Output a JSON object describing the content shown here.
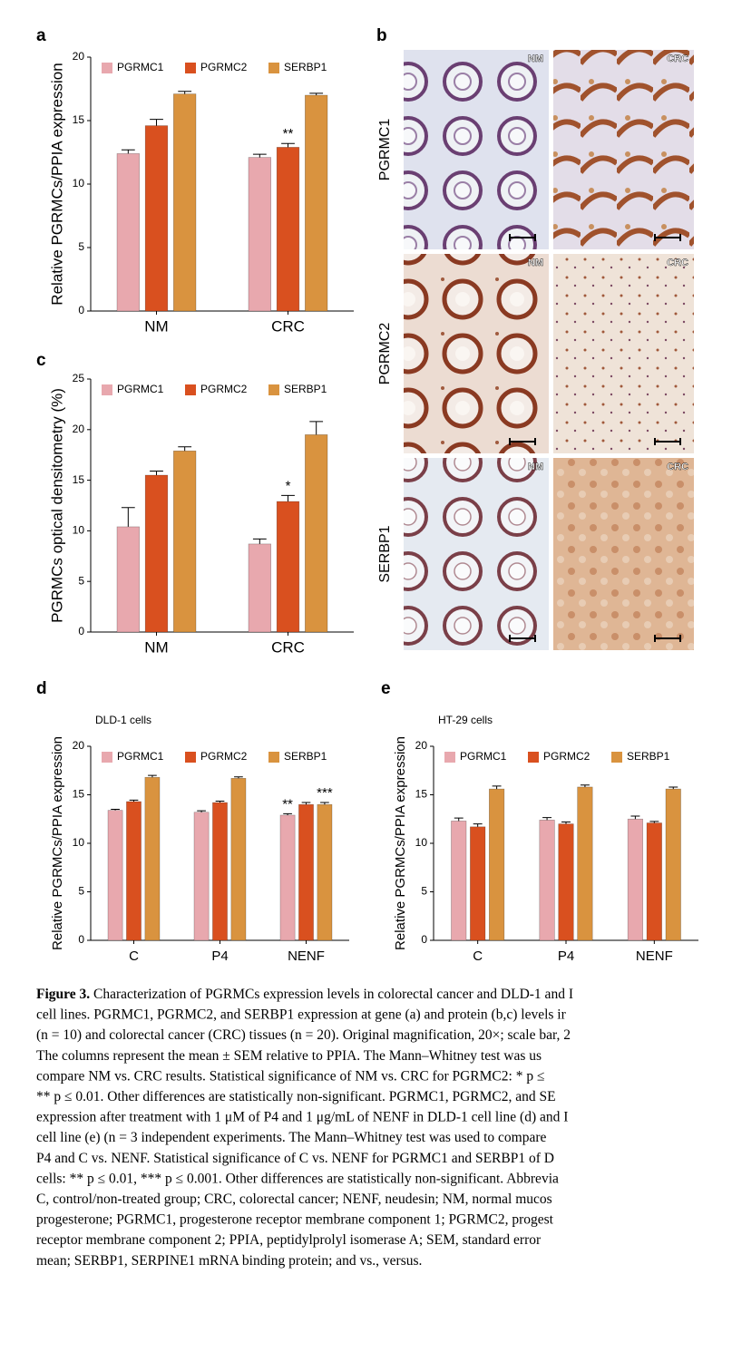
{
  "chart_data": [
    {
      "type": "bar",
      "panel": "a",
      "ylabel": "Relative PGRMCs/PPIA expression",
      "categories": [
        "NM",
        "CRC"
      ],
      "ylim": [
        0,
        20
      ],
      "yticks": [
        0,
        5,
        10,
        15,
        20
      ],
      "series": [
        {
          "name": "PGRMC1",
          "color": "#e8a8ae",
          "values": [
            12.4,
            12.1
          ],
          "errors": [
            0.3,
            0.25
          ],
          "annotations": [
            null,
            null
          ]
        },
        {
          "name": "PGRMC2",
          "color": "#d9501f",
          "values": [
            14.6,
            12.9
          ],
          "errors": [
            0.5,
            0.3
          ],
          "annotations": [
            null,
            "**"
          ]
        },
        {
          "name": "SERBP1",
          "color": "#d9933f",
          "values": [
            17.1,
            17.0
          ],
          "errors": [
            0.2,
            0.15
          ],
          "annotations": [
            null,
            null
          ]
        }
      ]
    },
    {
      "type": "bar",
      "panel": "c",
      "ylabel": "PGRMCs optical densitometry (%)",
      "categories": [
        "NM",
        "CRC"
      ],
      "ylim": [
        0,
        25
      ],
      "yticks": [
        0,
        5,
        10,
        15,
        20,
        25
      ],
      "series": [
        {
          "name": "PGRMC1",
          "color": "#e8a8ae",
          "values": [
            10.4,
            8.7
          ],
          "errors": [
            1.9,
            0.5
          ],
          "annotations": [
            null,
            null
          ]
        },
        {
          "name": "PGRMC2",
          "color": "#d9501f",
          "values": [
            15.5,
            12.9
          ],
          "errors": [
            0.4,
            0.6
          ],
          "annotations": [
            null,
            "*"
          ]
        },
        {
          "name": "SERBP1",
          "color": "#d9933f",
          "values": [
            17.9,
            19.5
          ],
          "errors": [
            0.4,
            1.3
          ],
          "annotations": [
            null,
            null
          ]
        }
      ]
    },
    {
      "type": "bar",
      "panel": "d",
      "subtitle": "DLD-1 cells",
      "ylabel": "Relative PGRMCs/PPIA expression",
      "categories": [
        "C",
        "P4",
        "NENF"
      ],
      "ylim": [
        0,
        20
      ],
      "yticks": [
        0,
        5,
        10,
        15,
        20
      ],
      "series": [
        {
          "name": "PGRMC1",
          "color": "#e8a8ae",
          "values": [
            13.4,
            13.2,
            12.9
          ],
          "errors": [
            0.1,
            0.15,
            0.15
          ],
          "annotations": [
            null,
            null,
            "**"
          ]
        },
        {
          "name": "PGRMC2",
          "color": "#d9501f",
          "values": [
            14.3,
            14.2,
            14.0
          ],
          "errors": [
            0.15,
            0.15,
            0.2
          ],
          "annotations": [
            null,
            null,
            null
          ]
        },
        {
          "name": "SERBP1",
          "color": "#d9933f",
          "values": [
            16.8,
            16.7,
            14.0
          ],
          "errors": [
            0.2,
            0.15,
            0.2
          ],
          "annotations": [
            null,
            null,
            "***"
          ]
        }
      ]
    },
    {
      "type": "bar",
      "panel": "e",
      "subtitle": "HT-29 cells",
      "ylabel": "Relative PGRMCs/PPIA expression",
      "categories": [
        "C",
        "P4",
        "NENF"
      ],
      "ylim": [
        0,
        20
      ],
      "yticks": [
        0,
        5,
        10,
        15,
        20
      ],
      "series": [
        {
          "name": "PGRMC1",
          "color": "#e8a8ae",
          "values": [
            12.3,
            12.4,
            12.5
          ],
          "errors": [
            0.3,
            0.25,
            0.3
          ],
          "annotations": [
            null,
            null,
            null
          ]
        },
        {
          "name": "PGRMC2",
          "color": "#d9501f",
          "values": [
            11.7,
            12.0,
            12.1
          ],
          "errors": [
            0.3,
            0.2,
            0.15
          ],
          "annotations": [
            null,
            null,
            null
          ]
        },
        {
          "name": "SERBP1",
          "color": "#d9933f",
          "values": [
            15.6,
            15.8,
            15.6
          ],
          "errors": [
            0.3,
            0.2,
            0.2
          ],
          "annotations": [
            null,
            null,
            null
          ]
        }
      ]
    }
  ],
  "images": {
    "panel": "b",
    "rows": [
      "PGRMC1",
      "PGRMC2",
      "SERBP1"
    ],
    "columns": [
      "NM",
      "CRC"
    ]
  },
  "caption": {
    "label": "Figure 3.",
    "lines": [
      " Characterization of PGRMCs expression levels in colorectal cancer and DLD-1 and I",
      "cell lines. PGRMC1, PGRMC2, and SERBP1 expression at gene (a) and protein (b,c) levels ir",
      "(n = 10) and colorectal cancer (CRC) tissues (n = 20). Original magnification, 20×; scale bar, 2",
      "The columns represent the mean ± SEM relative to PPIA. The Mann–Whitney test was us",
      "compare NM vs. CRC results. Statistical significance of NM vs. CRC for PGRMC2: * p ≤",
      "** p ≤ 0.01. Other differences are statistically non-significant. PGRMC1, PGRMC2, and SE",
      "expression after treatment with 1 μM of P4 and 1 μg/mL of NENF in DLD-1 cell line (d) and I",
      "cell line (e) (n = 3 independent experiments. The Mann–Whitney test was used to compare",
      "P4 and C vs. NENF. Statistical significance of C vs. NENF for PGRMC1 and SERBP1 of D",
      "cells: ** p ≤ 0.01, *** p ≤ 0.001. Other differences are statistically non-significant. Abbrevia",
      "C, control/non-treated group; CRC, colorectal cancer; NENF, neudesin; NM, normal mucos",
      "progesterone; PGRMC1, progesterone receptor membrane component 1; PGRMC2, progest",
      "receptor membrane component 2; PPIA, peptidylprolyl isomerase A; SEM, standard error",
      "mean; SERBP1, SERPINE1 mRNA binding protein; and vs., versus."
    ]
  }
}
